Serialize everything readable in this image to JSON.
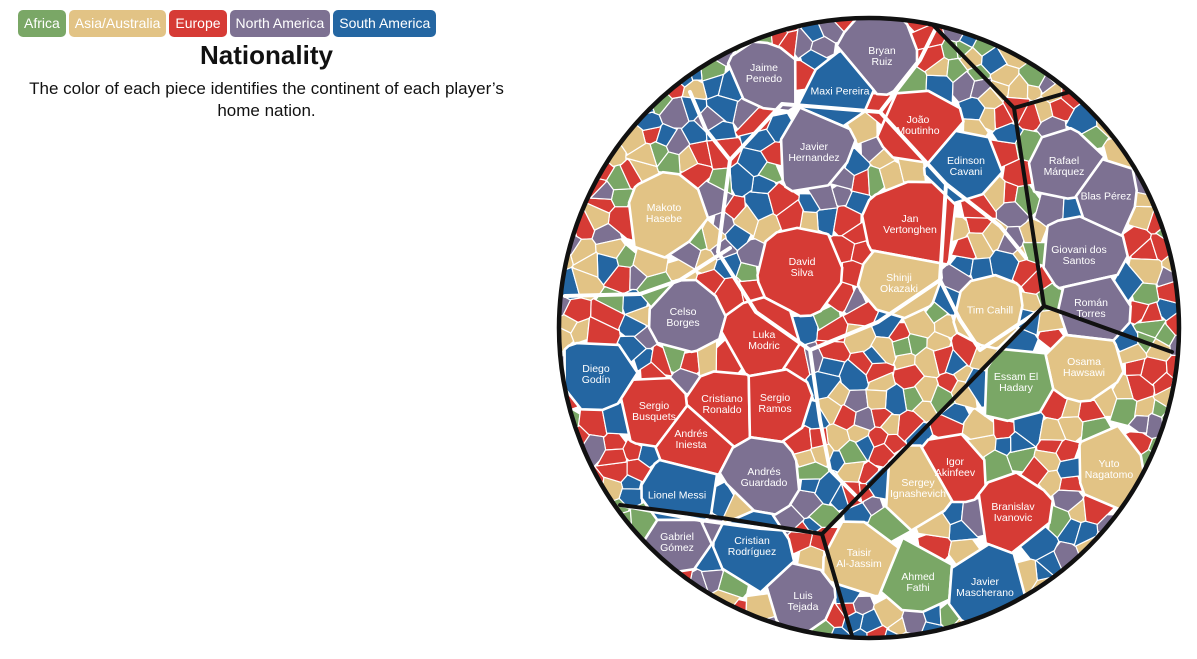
{
  "legend": [
    {
      "key": "africa",
      "label": "Africa",
      "color": "#7aa766"
    },
    {
      "key": "asia",
      "label": "Asia/Australia",
      "color": "#e2c385"
    },
    {
      "key": "europe",
      "label": "Europe",
      "color": "#d63b35"
    },
    {
      "key": "namerica",
      "label": "North America",
      "color": "#7d7192"
    },
    {
      "key": "samerica",
      "label": "South America",
      "color": "#2466a2"
    }
  ],
  "panel": {
    "title": "Nationality",
    "description": "The color of each piece identifies the continent of each player’s home nation."
  },
  "players": [
    {
      "name": [
        "Bryan",
        "Ruiz"
      ],
      "continent": "namerica"
    },
    {
      "name": [
        "Jaime",
        "Penedo"
      ],
      "continent": "namerica"
    },
    {
      "name": [
        "Maxi Pereira"
      ],
      "continent": "samerica"
    },
    {
      "name": [
        "João",
        "Moutinho"
      ],
      "continent": "europe"
    },
    {
      "name": [
        "Javier",
        "Hernandez"
      ],
      "continent": "namerica"
    },
    {
      "name": [
        "Edinson",
        "Cavani"
      ],
      "continent": "samerica"
    },
    {
      "name": [
        "Rafael",
        "Márquez"
      ],
      "continent": "namerica"
    },
    {
      "name": [
        "Makoto",
        "Hasebe"
      ],
      "continent": "asia"
    },
    {
      "name": [
        "Jan",
        "Vertonghen"
      ],
      "continent": "europe"
    },
    {
      "name": [
        "Blas Pérez"
      ],
      "continent": "namerica"
    },
    {
      "name": [
        "David",
        "Silva"
      ],
      "continent": "europe"
    },
    {
      "name": [
        "Giovani dos",
        "Santos"
      ],
      "continent": "namerica"
    },
    {
      "name": [
        "Shinji",
        "Okazaki"
      ],
      "continent": "asia"
    },
    {
      "name": [
        "Celso",
        "Borges"
      ],
      "continent": "namerica"
    },
    {
      "name": [
        "Tim Cahill"
      ],
      "continent": "asia"
    },
    {
      "name": [
        "Román",
        "Torres"
      ],
      "continent": "namerica"
    },
    {
      "name": [
        "Luka",
        "Modric"
      ],
      "continent": "europe"
    },
    {
      "name": [
        "Diego",
        "Godín"
      ],
      "continent": "samerica"
    },
    {
      "name": [
        "Osama",
        "Hawsawi"
      ],
      "continent": "asia"
    },
    {
      "name": [
        "Essam El",
        "Hadary"
      ],
      "continent": "africa"
    },
    {
      "name": [
        "Cristiano",
        "Ronaldo"
      ],
      "continent": "europe"
    },
    {
      "name": [
        "Sergio",
        "Ramos"
      ],
      "continent": "europe"
    },
    {
      "name": [
        "Sergio",
        "Busquets"
      ],
      "continent": "europe"
    },
    {
      "name": [
        "Andrés",
        "Iniesta"
      ],
      "continent": "europe"
    },
    {
      "name": [
        "Yuto",
        "Nagatomo"
      ],
      "continent": "asia"
    },
    {
      "name": [
        "Igor",
        "Akinfeev"
      ],
      "continent": "europe"
    },
    {
      "name": [
        "Andrés",
        "Guardado"
      ],
      "continent": "namerica"
    },
    {
      "name": [
        "Sergey",
        "Ignashevich"
      ],
      "continent": "asia"
    },
    {
      "name": [
        "Lionel Messi"
      ],
      "continent": "samerica"
    },
    {
      "name": [
        "Branislav",
        "Ivanovic"
      ],
      "continent": "europe"
    },
    {
      "name": [
        "Gabriel",
        "Gómez"
      ],
      "continent": "namerica"
    },
    {
      "name": [
        "Cristian",
        "Rodríguez"
      ],
      "continent": "samerica"
    },
    {
      "name": [
        "Taisir",
        "Al-Jassim"
      ],
      "continent": "asia"
    },
    {
      "name": [
        "Ahmed",
        "Fathi"
      ],
      "continent": "africa"
    },
    {
      "name": [
        "Javier",
        "Mascherano"
      ],
      "continent": "samerica"
    },
    {
      "name": [
        "Luis",
        "Tejada"
      ],
      "continent": "namerica"
    }
  ]
}
